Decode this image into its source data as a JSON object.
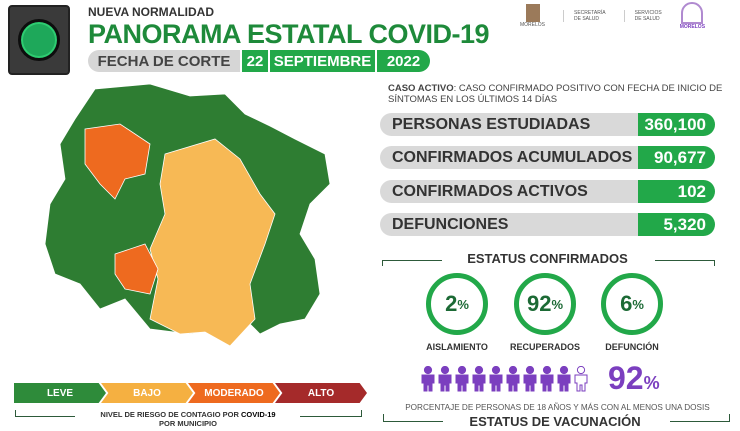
{
  "header": {
    "subtitle": "NUEVA NORMALIDAD",
    "title": "PANORAMA ESTATAL COVID-19",
    "date_label": "FECHA DE CORTE",
    "day": "22",
    "month": "SEPTIEMBRE",
    "year": "2022"
  },
  "logos": {
    "morelos": "MORELOS",
    "secretaria_1": "SECRETARÍA",
    "secretaria_2": "DE SALUD",
    "servicios_1": "SERVICIOS",
    "servicios_2": "DE SALUD",
    "morelos_brand": "MORELOS"
  },
  "caption": {
    "bold": "CASO ACTIVO",
    "text": ": CASO CONFIRMADO POSITIVO CON FECHA DE INICIO DE SÍNTOMAS EN LOS ÚLTIMOS 14 DÍAS"
  },
  "stats": [
    {
      "label": "PERSONAS ESTUDIADAS",
      "value": "360,100"
    },
    {
      "label": "CONFIRMADOS ACUMULADOS",
      "value": "90,677"
    },
    {
      "label": "CONFIRMADOS ACTIVOS",
      "value": "102"
    },
    {
      "label": "DEFUNCIONES",
      "value": "5,320"
    }
  ],
  "status": {
    "title": "ESTATUS CONFIRMADOS",
    "items": [
      {
        "value": "2",
        "unit": "%",
        "label": "AISLAMIENTO"
      },
      {
        "value": "92",
        "unit": "%",
        "label": "RECUPERADOS"
      },
      {
        "value": "6",
        "unit": "%",
        "label": "DEFUNCIÓN"
      }
    ]
  },
  "vaccination": {
    "value": "92",
    "unit": "%",
    "filled_people": 9,
    "total_people": 10,
    "caption": "PORCENTAJE DE PERSONAS DE 18 AÑOS Y MÁS CON AL MENOS UNA DOSIS",
    "title": "ESTATUS DE VACUNACIÓN",
    "color": "#7b3fbf"
  },
  "legend": {
    "items": [
      {
        "label": "LEVE",
        "color": "#2e8b3a"
      },
      {
        "label": "BAJO",
        "color": "#f5b041"
      },
      {
        "label": "MODERADO",
        "color": "#ee6a1f"
      },
      {
        "label": "ALTO",
        "color": "#a52a2a"
      }
    ],
    "caption_1": "NIVEL DE RIESGO DE CONTAGIO POR ",
    "caption_bold": "COVID-19",
    "caption_2": "POR MUNICIPIO"
  }
}
